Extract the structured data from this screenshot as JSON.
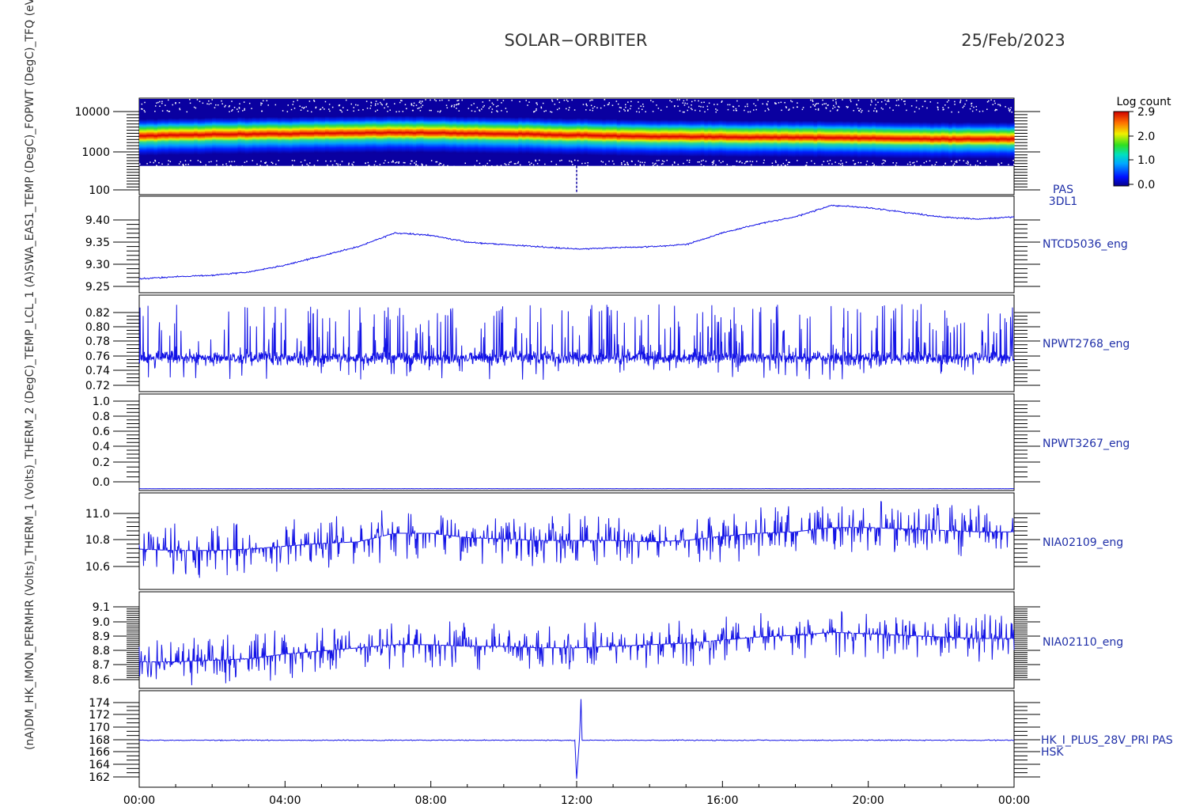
{
  "header": {
    "mission": "SOLAR−ORBITER",
    "date": "25/Feb/2023"
  },
  "y_axis_stacked_label": "(nA)DM_HK_IMON_PERMHR (Volts)_THERM_1 (Volts)_THERM_2 (DegC)_TEMP_LCL_1 (A)SWA_EAS1_TEMP (DegC)_FOPWT (DegC)_TFQ (eV)Approx Temp",
  "colors": {
    "trace": "#1414e6",
    "panel_label": "#1f2fa8",
    "axis": "#000000"
  },
  "x_axis": {
    "ticks": [
      "00:00",
      "04:00",
      "08:00",
      "12:00",
      "16:00",
      "20:00",
      "00:00"
    ]
  },
  "colorbar": {
    "title": "Log count",
    "ticks": [
      "2.9",
      "2.0",
      "1.0",
      "0.0"
    ],
    "range": [
      0.0,
      2.9
    ]
  },
  "panels": [
    {
      "id": "pas",
      "label_lines": [
        "PAS",
        "3DL1"
      ],
      "ytick_labels": [
        "10000",
        "1000",
        "100"
      ]
    },
    {
      "id": "ntcd",
      "label": "NTCD5036_eng",
      "ytick_labels": [
        "9.40",
        "9.35",
        "9.30",
        "9.25"
      ]
    },
    {
      "id": "npwt2768",
      "label": "NPWT2768_eng",
      "ytick_labels": [
        "0.82",
        "0.80",
        "0.78",
        "0.76",
        "0.74",
        "0.72"
      ]
    },
    {
      "id": "npwt3267",
      "label": "NPWT3267_eng",
      "ytick_labels": [
        "1.0",
        "0.8",
        "0.6",
        "0.4",
        "0.2",
        "0.0"
      ]
    },
    {
      "id": "nia02109",
      "label": "NIA02109_eng",
      "ytick_labels": [
        "11.0",
        "10.8",
        "10.6"
      ]
    },
    {
      "id": "nia02110",
      "label": "NIA02110_eng",
      "ytick_labels": [
        "9.1",
        "9.0",
        "8.9",
        "8.8",
        "8.7",
        "8.6"
      ]
    },
    {
      "id": "hk",
      "label_lines": [
        "HK_I_PLUS_28V_PRI PAS",
        "HSK"
      ],
      "ytick_labels": [
        "174",
        "172",
        "170",
        "168",
        "166",
        "164",
        "162"
      ]
    }
  ],
  "chart_data": [
    {
      "type": "heatmap",
      "title": "PAS 3DL1",
      "ylabel": "(eV)",
      "yscale": "log",
      "ylim": [
        100,
        20000
      ],
      "x": [
        "00:00",
        "24:00"
      ],
      "colorbar_label": "Log count",
      "zlim": [
        0.0,
        2.9
      ],
      "peak_energy_eV": {
        "x_hours": [
          0,
          2,
          4,
          7,
          10,
          12,
          14,
          18,
          22,
          24
        ],
        "y": [
          2400,
          2600,
          2700,
          2900,
          2700,
          2500,
          2300,
          2200,
          2000,
          2000
        ]
      }
    },
    {
      "type": "line",
      "name": "NTCD5036_eng",
      "ylim": [
        9.23,
        9.44
      ],
      "x_hours": [
        0,
        1,
        2,
        3,
        4,
        5,
        6,
        7,
        8,
        9,
        10,
        11,
        12,
        13,
        14,
        15,
        16,
        17,
        18,
        19,
        20,
        21,
        22,
        23,
        24
      ],
      "y": [
        9.26,
        9.265,
        9.268,
        9.275,
        9.29,
        9.31,
        9.33,
        9.36,
        9.355,
        9.34,
        9.335,
        9.33,
        9.325,
        9.328,
        9.33,
        9.335,
        9.36,
        9.38,
        9.395,
        9.42,
        9.415,
        9.405,
        9.395,
        9.39,
        9.395
      ]
    },
    {
      "type": "line",
      "name": "NPWT2768_eng",
      "ylim": [
        0.715,
        0.83
      ],
      "baseline": 0.755,
      "noise_min": 0.725,
      "noise_max": 0.82
    },
    {
      "type": "line",
      "name": "NPWT3267_eng",
      "ylim": [
        -0.02,
        1.02
      ],
      "x_hours": [
        0,
        24
      ],
      "y": [
        0.0,
        0.0
      ]
    },
    {
      "type": "line",
      "name": "NIA02109_eng",
      "ylim": [
        10.45,
        11.12
      ],
      "x_hours": [
        0,
        1,
        2,
        3,
        4,
        5,
        6,
        7,
        8,
        9,
        10,
        11,
        12,
        13,
        14,
        15,
        16,
        17,
        18,
        19,
        20,
        21,
        22,
        23,
        24
      ],
      "y": [
        10.73,
        10.72,
        10.72,
        10.73,
        10.75,
        10.77,
        10.78,
        10.84,
        10.84,
        10.81,
        10.8,
        10.79,
        10.79,
        10.79,
        10.78,
        10.79,
        10.82,
        10.84,
        10.85,
        10.88,
        10.88,
        10.87,
        10.86,
        10.85,
        10.85
      ],
      "noise_amplitude": 0.12
    },
    {
      "type": "line",
      "name": "NIA02110_eng",
      "ylim": [
        8.54,
        9.16
      ],
      "x_hours": [
        0,
        1,
        2,
        3,
        4,
        5,
        6,
        7,
        8,
        9,
        10,
        11,
        12,
        13,
        14,
        15,
        16,
        17,
        18,
        19,
        20,
        21,
        22,
        23,
        24
      ],
      "y": [
        8.71,
        8.71,
        8.72,
        8.73,
        8.76,
        8.78,
        8.8,
        8.82,
        8.82,
        8.81,
        8.81,
        8.8,
        8.8,
        8.81,
        8.82,
        8.83,
        8.85,
        8.87,
        8.88,
        8.9,
        8.89,
        8.88,
        8.87,
        8.86,
        8.86
      ],
      "noise_amplitude": 0.1
    },
    {
      "type": "line",
      "name": "HK_I_PLUS_28V_PRI PAS HSK",
      "ylabel": "(nA)",
      "ylim": [
        160.5,
        175.5
      ],
      "baseline": 167.8,
      "spike": {
        "x_hours": [
          11.95,
          12.0,
          12.08,
          12.12,
          12.15
        ],
        "y": [
          167.8,
          161.8,
          168.3,
          174.2,
          167.8
        ]
      }
    }
  ]
}
